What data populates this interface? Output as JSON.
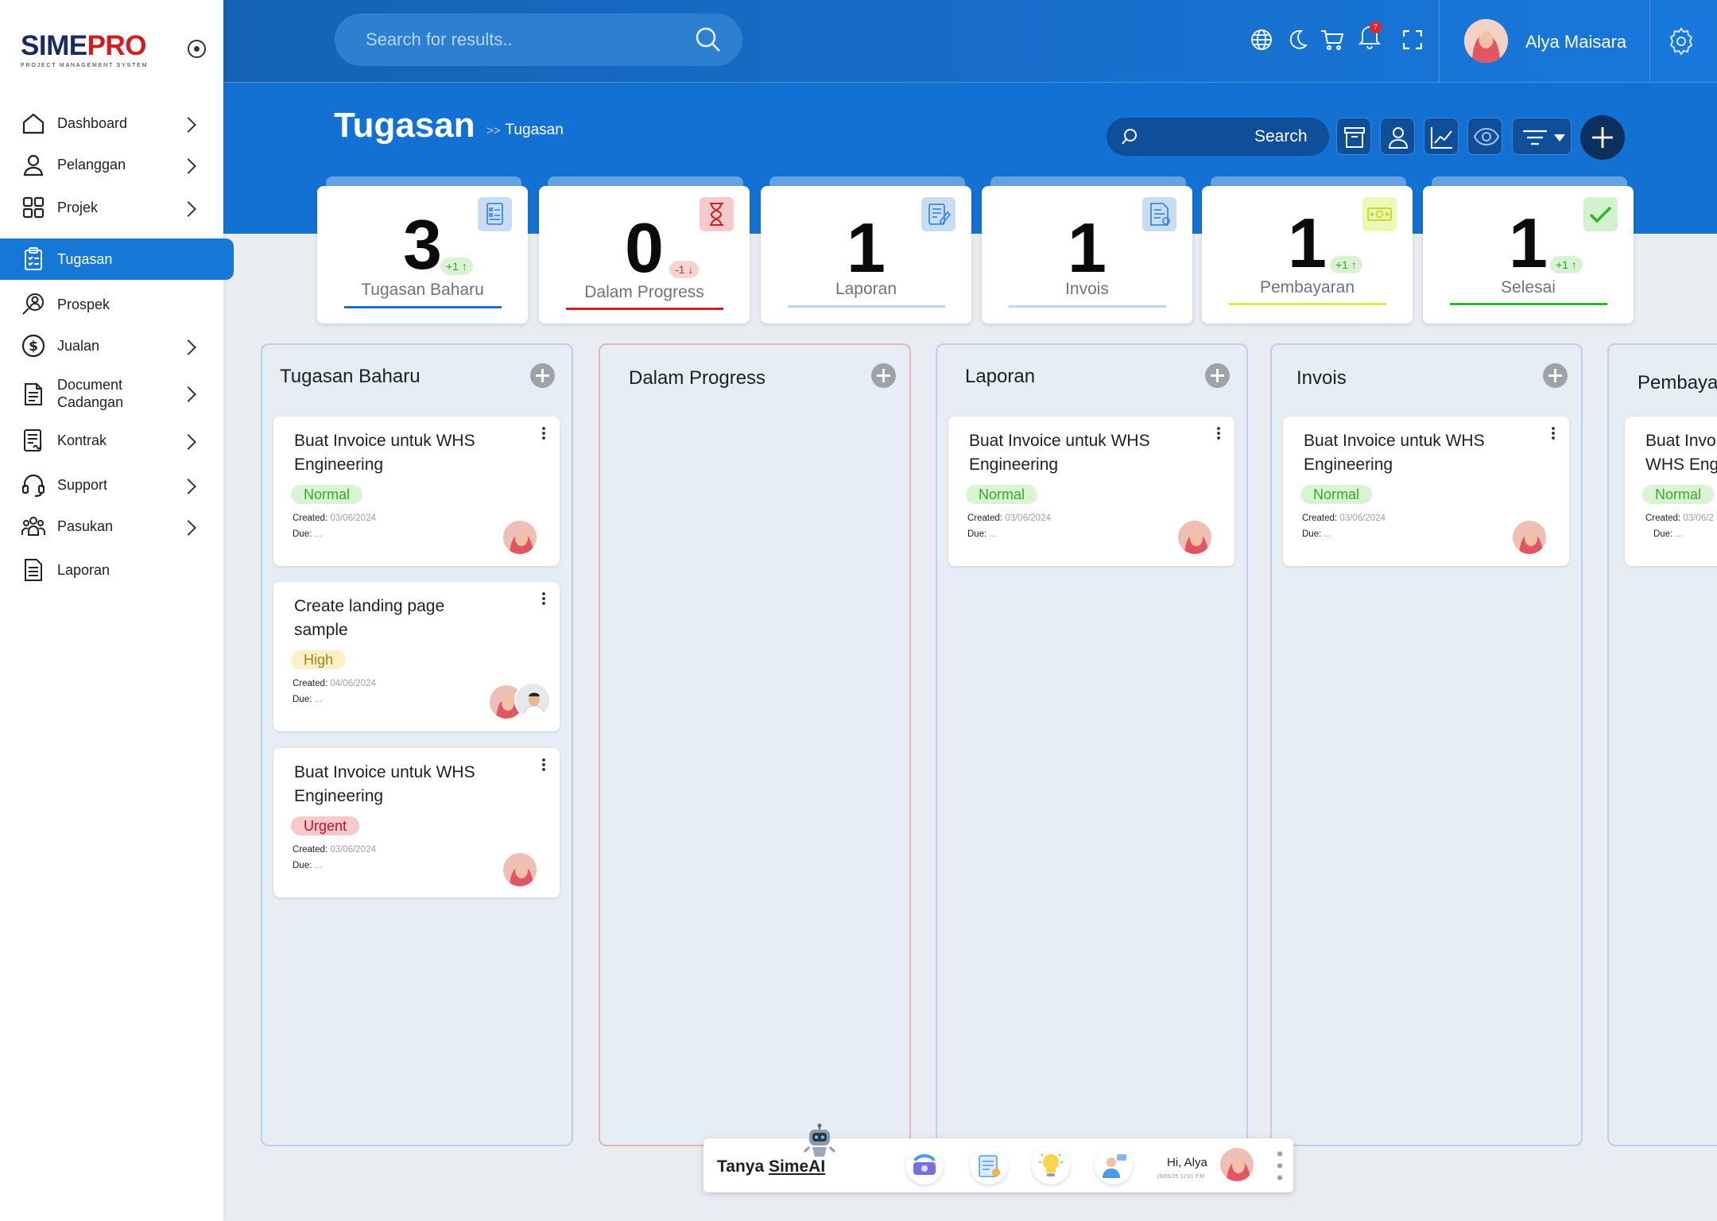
{
  "app": {
    "logo_part1": "SIME",
    "logo_part2": "PRO",
    "logo_subtitle": "PROJECT MANAGEMENT SYSTEM"
  },
  "sidebar": {
    "items": [
      {
        "label": "Dashboard",
        "icon": "home-icon",
        "chevron": true
      },
      {
        "label": "Pelanggan",
        "icon": "user-icon",
        "chevron": true
      },
      {
        "label": "Projek",
        "icon": "grid-icon",
        "chevron": true
      },
      {
        "label": "Tugasan",
        "icon": "clipboard-icon",
        "active": true
      },
      {
        "label": "Prospek",
        "icon": "user-search-icon"
      },
      {
        "label": "Jualan",
        "icon": "dollar-icon",
        "chevron": true
      },
      {
        "label": "Document",
        "label2": "Cadangan",
        "icon": "document-icon",
        "chevron": true
      },
      {
        "label": "Kontrak",
        "icon": "contract-icon",
        "chevron": true
      },
      {
        "label": "Support",
        "icon": "headset-icon",
        "chevron": true
      },
      {
        "label": "Pasukan",
        "icon": "team-icon",
        "chevron": true
      },
      {
        "label": "Laporan",
        "icon": "report-icon"
      }
    ]
  },
  "topbar": {
    "search_placeholder": "Search for results..",
    "notification_count": "7",
    "user_name": "Alya Maisara"
  },
  "header": {
    "title": "Tugasan",
    "breadcrumb_sep": ">>",
    "breadcrumb_current": "Tugasan",
    "search_label": "Search"
  },
  "stats": [
    {
      "value": "3",
      "label": "Tugasan Baharu",
      "delta": "+1",
      "delta_dir": "up",
      "color": "#1c6fc4",
      "icon": "checklist-icon"
    },
    {
      "value": "0",
      "label": "Dalam Progress",
      "delta": "-1",
      "delta_dir": "down",
      "color": "#d0201f",
      "icon": "hourglass-icon"
    },
    {
      "value": "1",
      "label": "Laporan",
      "color": "#bcd7ee",
      "icon": "report-edit-icon"
    },
    {
      "value": "1",
      "label": "Invois",
      "color": "#bcd7ee",
      "icon": "invoice-icon"
    },
    {
      "value": "1",
      "label": "Pembayaran",
      "delta": "+1",
      "delta_dir": "up",
      "color": "#d8ee3a",
      "icon": "money-icon"
    },
    {
      "value": "1",
      "label": "Selesai",
      "delta": "+1",
      "delta_dir": "up",
      "color": "#2bb52b",
      "icon": "check-icon"
    }
  ],
  "columns": [
    {
      "title": "Tugasan Baharu",
      "cards": [
        {
          "title": "Buat Invoice untuk WHS Engineering",
          "priority": "Normal",
          "created_label": "Created:",
          "created": "03/06/2024",
          "due_label": "Due:",
          "due": "..."
        },
        {
          "title": "Create landing page sample",
          "priority": "High",
          "created_label": "Created:",
          "created": "04/06/2024",
          "due_label": "Due:",
          "due": "..."
        },
        {
          "title": "Buat Invoice untuk WHS Engineering",
          "priority": "Urgent",
          "created_label": "Created:",
          "created": "03/06/2024",
          "due_label": "Due:",
          "due": "..."
        }
      ]
    },
    {
      "title": "Dalam Progress",
      "cards": []
    },
    {
      "title": "Laporan",
      "cards": [
        {
          "title": "Buat Invoice untuk WHS Engineering",
          "priority": "Normal",
          "created_label": "Created:",
          "created": "03/06/2024",
          "due_label": "Due:",
          "due": "..."
        }
      ]
    },
    {
      "title": "Invois",
      "cards": [
        {
          "title": "Buat Invoice untuk WHS Engineering",
          "priority": "Normal",
          "created_label": "Created:",
          "created": "03/06/2024",
          "due_label": "Due:",
          "due": "..."
        }
      ]
    },
    {
      "title": "Pembaya",
      "cards": [
        {
          "title": "Buat Invo",
          "title2": "WHS Eng",
          "priority": "Normal",
          "created_label": "Created:",
          "created": "03/06/2",
          "due_label": "Due:",
          "due": "..."
        }
      ]
    }
  ],
  "ai_bar": {
    "label_prefix": "Tanya ",
    "label_brand": "SimeAI",
    "greeting": "Hi, Alya",
    "timestamp": "19/05/25 12:01 P.M"
  }
}
